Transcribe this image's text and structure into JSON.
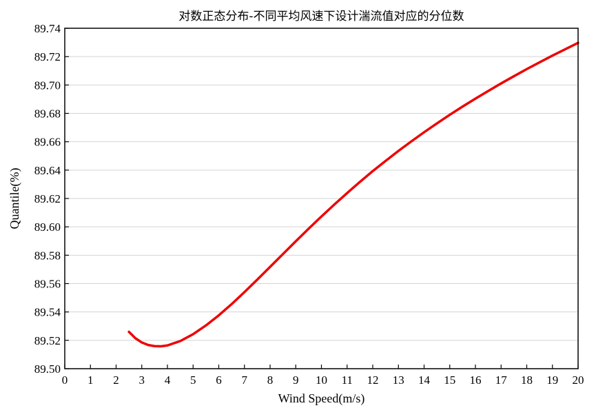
{
  "chart_data": {
    "type": "line",
    "title": "对数正态分布-不同平均风速下设计湍流值对应的分位数",
    "xlabel": "Wind Speed(m/s)",
    "ylabel": "Quantile(%)",
    "xlim": [
      0,
      20
    ],
    "ylim": [
      89.5,
      89.74
    ],
    "x_ticks": [
      0,
      1,
      2,
      3,
      4,
      5,
      6,
      7,
      8,
      9,
      10,
      11,
      12,
      13,
      14,
      15,
      16,
      17,
      18,
      19,
      20
    ],
    "y_ticks": [
      89.5,
      89.52,
      89.54,
      89.56,
      89.58,
      89.6,
      89.62,
      89.64,
      89.66,
      89.68,
      89.7,
      89.72,
      89.74
    ],
    "y_tick_labels": [
      "89.50",
      "89.52",
      "89.54",
      "89.56",
      "89.58",
      "89.60",
      "89.62",
      "89.64",
      "89.66",
      "89.68",
      "89.70",
      "89.72",
      "89.74"
    ],
    "grid": "horizontal",
    "legend": "none",
    "series": [
      {
        "color": "#ee0000",
        "x": [
          2.5,
          2.75,
          3.0,
          3.25,
          3.5,
          3.75,
          4.0,
          4.5,
          5.0,
          5.5,
          6.0,
          6.5,
          7.0,
          7.5,
          8.0,
          8.5,
          9.0,
          9.5,
          10.0,
          10.5,
          11.0,
          11.5,
          12.0,
          12.5,
          13.0,
          13.5,
          14.0,
          14.5,
          15.0,
          15.5,
          16.0,
          16.5,
          17.0,
          17.5,
          18.0,
          18.5,
          19.0,
          19.5,
          20.0
        ],
        "y": [
          89.526,
          89.5215,
          89.5185,
          89.5167,
          89.5159,
          89.5158,
          89.5164,
          89.5195,
          89.5243,
          89.5305,
          89.5376,
          89.5455,
          89.554,
          89.5628,
          89.5718,
          89.5808,
          89.5898,
          89.5987,
          89.6073,
          89.6157,
          89.6238,
          89.6317,
          89.6393,
          89.6465,
          89.6535,
          89.6602,
          89.6667,
          89.6729,
          89.679,
          89.6848,
          89.6904,
          89.6958,
          89.7011,
          89.7062,
          89.7112,
          89.716,
          89.7207,
          89.7252,
          89.7297
        ]
      }
    ]
  }
}
